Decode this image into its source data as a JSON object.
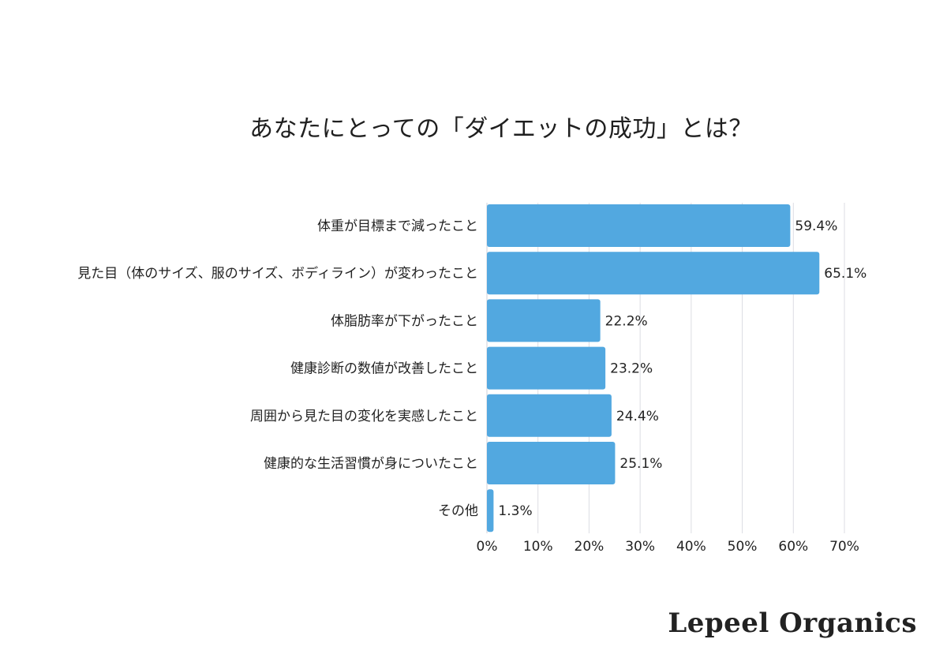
{
  "chart_data": {
    "type": "bar",
    "orientation": "horizontal",
    "title": "あなたにとっての「ダイエットの成功」とは？",
    "categories": [
      "体重が目標まで減ったこと",
      "見た目（体のサイズ、服のサイズ、ボディライン）が変わったこと",
      "体脂肪率が下がったこと",
      "健康診断の数値が改善したこと",
      "周囲から見た目の変化を実感したこと",
      "健康的な生活習慣が身についたこと",
      "その他"
    ],
    "values": [
      59.4,
      65.1,
      22.2,
      23.2,
      24.4,
      25.1,
      1.3
    ],
    "value_labels": [
      "59.4%",
      "65.1%",
      "22.2%",
      "23.2%",
      "24.4%",
      "25.1%",
      "1.3%"
    ],
    "xlim": [
      0,
      70
    ],
    "x_ticks": [
      "0%",
      "10%",
      "20%",
      "30%",
      "40%",
      "50%",
      "60%",
      "70%"
    ],
    "grid": "vertical",
    "bar_color": "#52a8e0"
  },
  "brand": {
    "logo_text": "Lepeel Organics"
  }
}
